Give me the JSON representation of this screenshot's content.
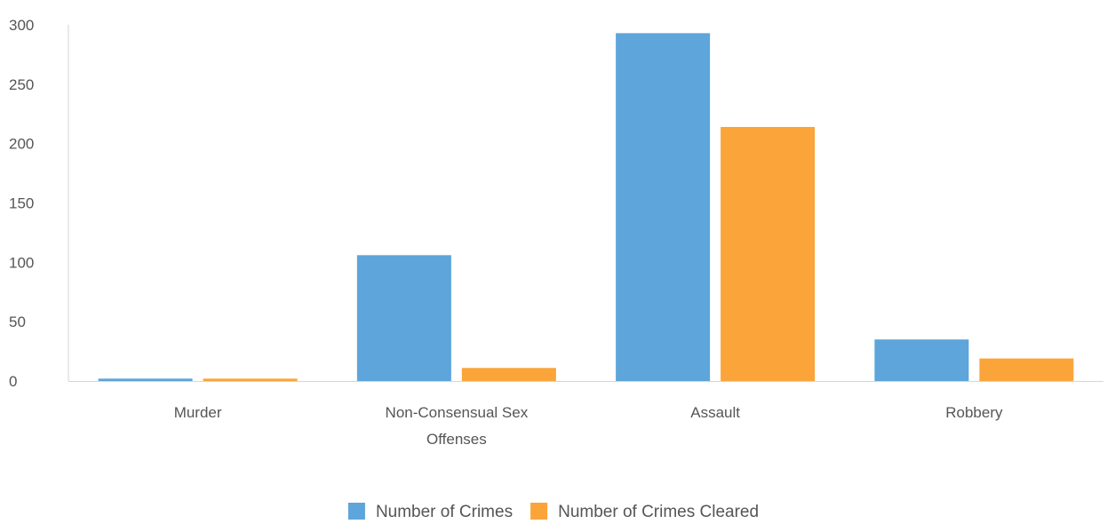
{
  "chart_data": {
    "type": "bar",
    "title": "",
    "xlabel": "",
    "ylabel": "",
    "categories": [
      [
        "Murder"
      ],
      [
        "Non-Consensual Sex",
        "Offenses"
      ],
      [
        "Assault"
      ],
      [
        "Robbery"
      ]
    ],
    "series": [
      {
        "name": "Number of Crimes",
        "color": "#5da5da",
        "values": [
          2,
          106,
          293,
          35
        ]
      },
      {
        "name": "Number of Crimes Cleared",
        "color": "#faa43a",
        "values": [
          2,
          11,
          214,
          19
        ]
      }
    ],
    "ylim": [
      0,
      300
    ],
    "yticks": [
      0,
      50,
      100,
      150,
      200,
      250,
      300
    ],
    "grid": false,
    "legend_position": "bottom-center",
    "axis_color": "#d6d6d6"
  }
}
